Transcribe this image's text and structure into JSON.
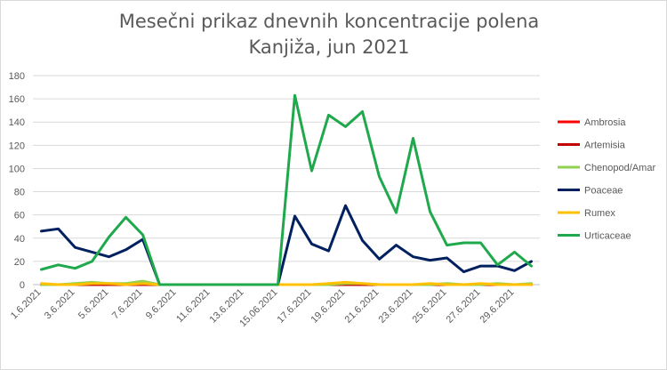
{
  "chart_data": {
    "type": "line",
    "title": "Mesečni prikaz dnevnih koncentracije polena",
    "subtitle": "Kanjiža, jun 2021",
    "xlabel": "",
    "ylabel": "",
    "ylim": [
      0,
      180
    ],
    "yticks": [
      0,
      20,
      40,
      60,
      80,
      100,
      120,
      140,
      160,
      180
    ],
    "grid": true,
    "legend_position": "right",
    "x": [
      "1.6.2021",
      "2.6.2021",
      "3.6.2021",
      "4.6.2021",
      "5.6.2021",
      "6.6.2021",
      "7.6.2021",
      "8.6.2021",
      "9.6.2021",
      "10.6.2021",
      "11.6.2021",
      "12.6.2021",
      "13.6.2021",
      "14.6.2021",
      "15.06.2021",
      "16.6.2021",
      "17.6.2021",
      "18.6.2021",
      "19.6.2021",
      "20.6.2021",
      "21.6.2021",
      "22.6.2021",
      "23.6.2021",
      "24.6.2021",
      "25.6.2021",
      "26.6.2021",
      "27.6.2021",
      "28.6.2021",
      "29.6.2021",
      "30.6.2021"
    ],
    "x_tick_labels": [
      "1.6.2021",
      "",
      "3.6.2021",
      "",
      "5.6.2021",
      "",
      "7.6.2021",
      "",
      "9.6.2021",
      "",
      "11.6.2021",
      "",
      "13.6.2021",
      "",
      "15.06.2021",
      "",
      "17.6.2021",
      "",
      "19.6.2021",
      "",
      "21.6.2021",
      "",
      "23.6.2021",
      "",
      "25.6.2021",
      "",
      "27.6.2021",
      "",
      "29.6.2021",
      ""
    ],
    "series": [
      {
        "name": "Ambrosia",
        "color": "#ff0000",
        "values": [
          0,
          0,
          0,
          0,
          0,
          0,
          0,
          0,
          0,
          0,
          0,
          0,
          0,
          0,
          0,
          0,
          0,
          0,
          0,
          0,
          0,
          0,
          0,
          0,
          0,
          0,
          0,
          0,
          0,
          0
        ]
      },
      {
        "name": "Artemisia",
        "color": "#c00000",
        "values": [
          0,
          0,
          0,
          0,
          0,
          0,
          0,
          0,
          0,
          0,
          0,
          0,
          0,
          0,
          0,
          0,
          0,
          0,
          0,
          0,
          0,
          0,
          0,
          0,
          0,
          0,
          0,
          0,
          0,
          0
        ]
      },
      {
        "name": "Chenopod/Amar",
        "color": "#92d050",
        "values": [
          0,
          0,
          1,
          2,
          1,
          1,
          3,
          0,
          0,
          0,
          0,
          0,
          0,
          0,
          0,
          0,
          0,
          0,
          1,
          1,
          0,
          0,
          0,
          0,
          1,
          0,
          0,
          1,
          0,
          1
        ]
      },
      {
        "name": "Poaceae",
        "color": "#002060",
        "values": [
          46,
          48,
          32,
          28,
          24,
          30,
          39,
          0,
          0,
          0,
          0,
          0,
          0,
          0,
          0,
          59,
          35,
          29,
          68,
          38,
          22,
          34,
          24,
          21,
          23,
          11,
          16,
          16,
          12,
          20
        ]
      },
      {
        "name": "Rumex",
        "color": "#ffc000",
        "values": [
          1,
          0,
          0,
          1,
          1,
          0,
          1,
          0,
          0,
          0,
          0,
          0,
          0,
          0,
          0,
          0,
          0,
          1,
          2,
          1,
          0,
          0,
          0,
          1,
          0,
          0,
          1,
          0,
          0,
          0
        ]
      },
      {
        "name": "Urticaceae",
        "color": "#1fa94c",
        "values": [
          13,
          17,
          14,
          20,
          41,
          58,
          43,
          0,
          0,
          0,
          0,
          0,
          0,
          0,
          0,
          163,
          98,
          146,
          136,
          149,
          93,
          62,
          126,
          63,
          34,
          36,
          36,
          17,
          28,
          16
        ]
      }
    ]
  }
}
